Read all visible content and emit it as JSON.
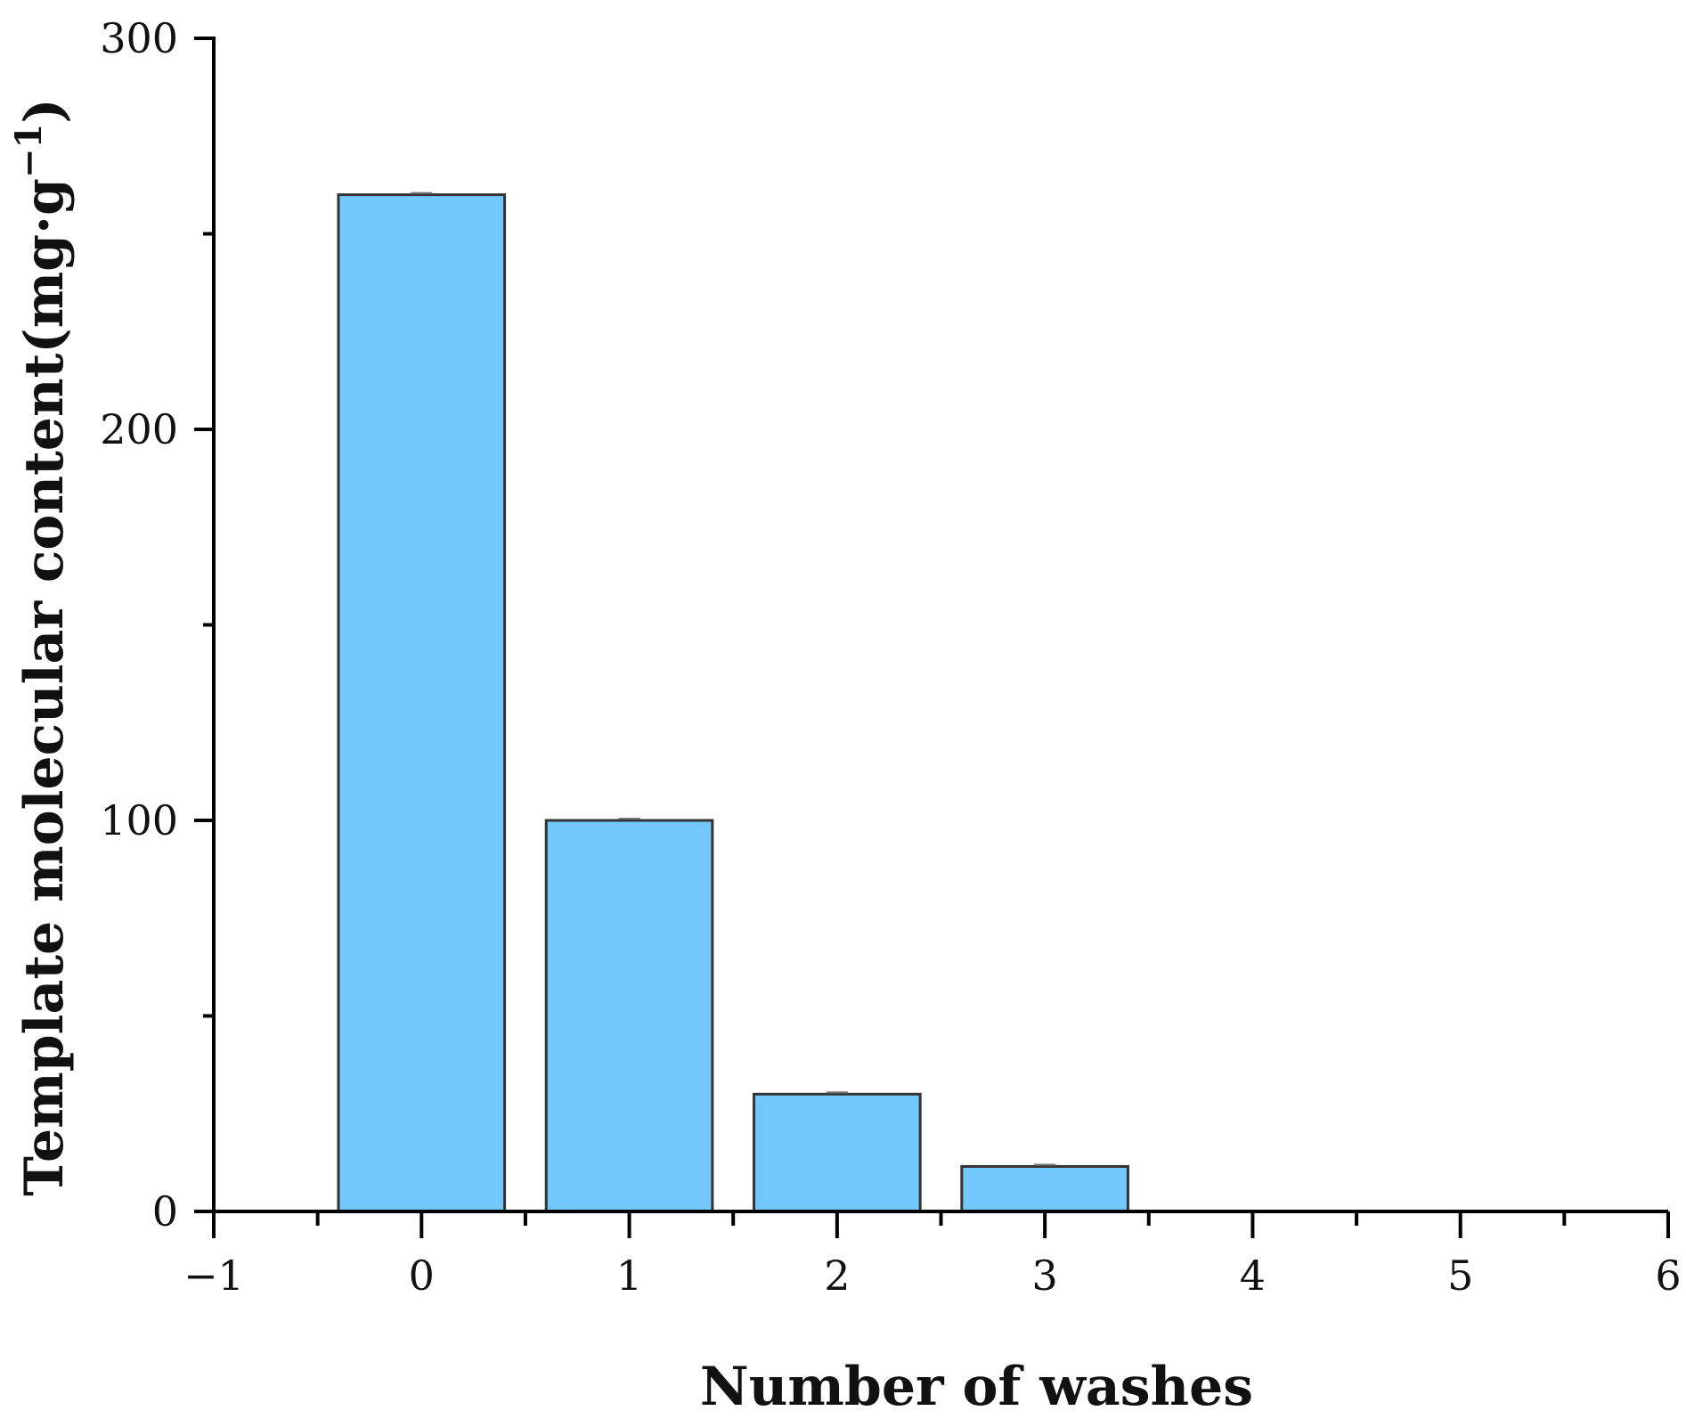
{
  "chart_data": {
    "type": "bar",
    "x": [
      0,
      1,
      2,
      3
    ],
    "values": [
      260,
      100,
      30,
      11.5
    ],
    "bar_width": 0.8,
    "xlabel": "Number of washes",
    "ylabel_main": "Template molecular content(mg·g",
    "ylabel_sup": "−1",
    "ylabel_end": ")",
    "xlim": [
      -1,
      6
    ],
    "ylim": [
      0,
      300
    ],
    "x_ticks": [
      -1,
      0,
      1,
      2,
      3,
      4,
      5,
      6
    ],
    "x_tick_labels": [
      "−1",
      "0",
      "1",
      "2",
      "3",
      "4",
      "5",
      "6"
    ],
    "y_ticks": [
      0,
      100,
      200,
      300
    ],
    "y_tick_labels": [
      "0",
      "100",
      "200",
      "300"
    ],
    "bar_color": "#73c8fb",
    "grid": false,
    "legend": "none"
  }
}
